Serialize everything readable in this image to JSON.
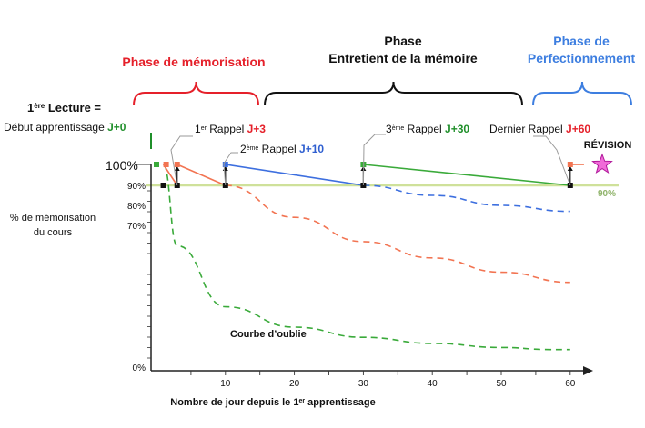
{
  "chart_data": {
    "type": "line",
    "phases": [
      {
        "lines": [
          "Phase de mémorisation"
        ],
        "color": "#e5202a"
      },
      {
        "lines": [
          "Phase",
          "Entretient de la mémoire"
        ],
        "color": "#111111"
      },
      {
        "lines": [
          "Phase de",
          "Perfectionnement"
        ],
        "color": "#3d7ee0"
      }
    ],
    "first_reading": {
      "line1_pre": "1",
      "line1_sup": "ère",
      "line1_post": " Lecture =",
      "line2_pre": "Début apprentissage ",
      "line2_tag": "J+0",
      "tag_color": "#1f8f2a"
    },
    "recalls": [
      {
        "pre": "1",
        "sup": "er",
        "post": " Rappel ",
        "tag": "J+3",
        "tag_color": "#e5202a"
      },
      {
        "pre": "2",
        "sup": "ème",
        "post": " Rappel ",
        "tag": "J+10",
        "tag_color": "#2f5fd0"
      },
      {
        "pre": "3",
        "sup": "ème",
        "post": " Rappel ",
        "tag": "J+30",
        "tag_color": "#1f8f2a"
      },
      {
        "pre": "",
        "sup": "",
        "post": "Dernier Rappel ",
        "tag": "J+60",
        "tag_color": "#e5202a"
      }
    ],
    "revision_label": "RÉVISION",
    "hundred_label": "100%",
    "ylabel_lines": [
      "% de mémorisation",
      "du cours"
    ],
    "y_ticks": [
      "90%",
      "80%",
      "70%",
      "0%"
    ],
    "x_ticks": [
      10,
      20,
      30,
      40,
      50,
      60
    ],
    "xlabel_pre": "Nombre de jour depuis le 1",
    "xlabel_sup": "er",
    "xlabel_post": " apprentissage",
    "threshold_label": "90%",
    "forgetting_label": "Courbe d’oublie",
    "series": [
      {
        "color": "#3aaa3a",
        "dashed": true,
        "x": [
          1,
          3,
          10,
          20,
          30,
          40,
          50,
          57,
          60
        ],
        "y": [
          100,
          60,
          30,
          20,
          15,
          12,
          10,
          9,
          9
        ]
      },
      {
        "color": "#f27452",
        "dashed": false,
        "x": [
          1,
          3
        ],
        "y": [
          100,
          90
        ]
      },
      {
        "color": "#f27452",
        "dashed": false,
        "x": [
          3,
          10
        ],
        "y": [
          100,
          90
        ]
      },
      {
        "color": "#f27452",
        "dashed": true,
        "x": [
          10,
          20,
          30,
          40,
          50,
          60
        ],
        "y": [
          90,
          74,
          62,
          54,
          47,
          42
        ]
      },
      {
        "color": "#3d6fdf",
        "dashed": false,
        "x": [
          10,
          30
        ],
        "y": [
          100,
          90
        ]
      },
      {
        "color": "#3d6fdf",
        "dashed": true,
        "x": [
          30,
          40,
          50,
          60
        ],
        "y": [
          90,
          85,
          80,
          77
        ]
      },
      {
        "color": "#3aaa3a",
        "dashed": false,
        "x": [
          30,
          60
        ],
        "y": [
          100,
          90
        ]
      },
      {
        "color": "#f27452",
        "dashed": false,
        "x": [
          60,
          62
        ],
        "y": [
          100,
          100
        ]
      }
    ]
  }
}
